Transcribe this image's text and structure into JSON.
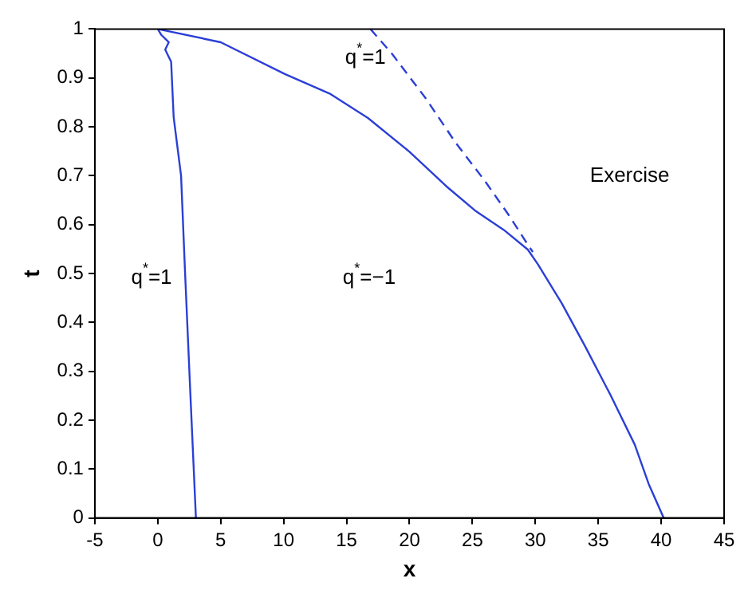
{
  "chart_data": {
    "type": "line",
    "xlabel": "x",
    "ylabel": "t",
    "xlim": [
      -5,
      45
    ],
    "ylim": [
      0,
      1
    ],
    "xticks": [
      -5,
      0,
      5,
      10,
      15,
      20,
      25,
      30,
      35,
      40,
      45
    ],
    "yticks": [
      0,
      0.1,
      0.2,
      0.3,
      0.4,
      0.5,
      0.6,
      0.7,
      0.8,
      0.9,
      1
    ],
    "grid": false,
    "legend": false,
    "marker": "none",
    "series": [
      {
        "color": "#2b3fd6",
        "line_style": "solid",
        "x": [
          0,
          0.28,
          0.87,
          0.59,
          1.06,
          1.26,
          1.85,
          2.17,
          2.56,
          3.03
        ],
        "values": [
          1,
          0.988,
          0.973,
          0.958,
          0.933,
          0.82,
          0.7,
          0.5,
          0.27,
          0
        ]
      },
      {
        "color": "#2b3fd6",
        "line_style": "solid",
        "x": [
          0,
          5,
          10.1,
          13.65,
          16.7,
          20,
          22.9,
          25.2,
          27.5,
          29.4,
          30.2,
          32.1,
          34,
          36,
          37.9,
          39,
          40.2
        ],
        "values": [
          1,
          0.973,
          0.908,
          0.868,
          0.818,
          0.749,
          0.679,
          0.629,
          0.589,
          0.549,
          0.519,
          0.439,
          0.349,
          0.25,
          0.15,
          0.07,
          0
        ]
      },
      {
        "color": "#2b3fd6",
        "line_style": "dashed",
        "x": [
          16.9,
          18.65,
          21.3,
          23.65,
          26,
          27.9,
          29.4,
          29.8
        ],
        "values": [
          1,
          0.948,
          0.858,
          0.768,
          0.689,
          0.619,
          0.559,
          0.544
        ]
      }
    ],
    "annotations": [
      "q$^{*}$=1",
      "q$^{*}$=1",
      "q$^{*}$=−1",
      "Exercise"
    ]
  }
}
